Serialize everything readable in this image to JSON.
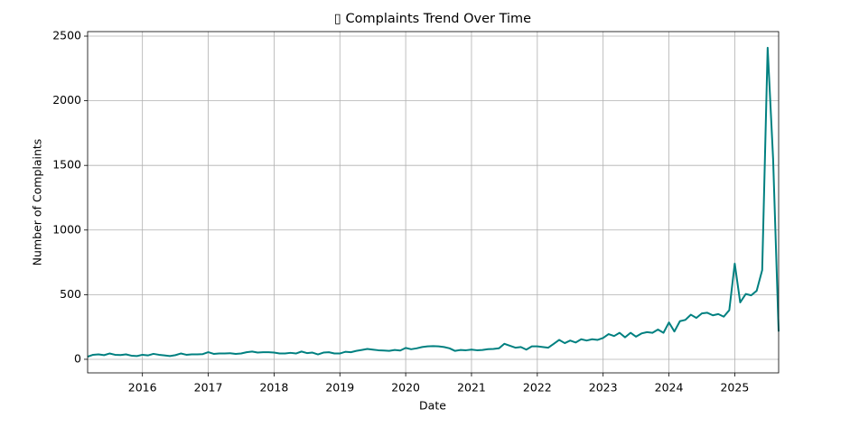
{
  "chart_data": {
    "type": "line",
    "title": "▯ Complaints Trend Over Time",
    "xlabel": "Date",
    "ylabel": "Number of Complaints",
    "color": "#008080",
    "grid": true,
    "x": [
      2015.167,
      2015.25,
      2015.333,
      2015.417,
      2015.5,
      2015.583,
      2015.667,
      2015.75,
      2015.833,
      2015.917,
      2016.0,
      2016.083,
      2016.167,
      2016.25,
      2016.333,
      2016.417,
      2016.5,
      2016.583,
      2016.667,
      2016.75,
      2016.833,
      2016.917,
      2017.0,
      2017.083,
      2017.167,
      2017.25,
      2017.333,
      2017.417,
      2017.5,
      2017.583,
      2017.667,
      2017.75,
      2017.833,
      2017.917,
      2018.0,
      2018.083,
      2018.167,
      2018.25,
      2018.333,
      2018.417,
      2018.5,
      2018.583,
      2018.667,
      2018.75,
      2018.833,
      2018.917,
      2019.0,
      2019.083,
      2019.167,
      2019.25,
      2019.333,
      2019.417,
      2019.5,
      2019.583,
      2019.667,
      2019.75,
      2019.833,
      2019.917,
      2020.0,
      2020.083,
      2020.167,
      2020.25,
      2020.333,
      2020.417,
      2020.5,
      2020.583,
      2020.667,
      2020.75,
      2020.833,
      2020.917,
      2021.0,
      2021.083,
      2021.167,
      2021.25,
      2021.333,
      2021.417,
      2021.5,
      2021.583,
      2021.667,
      2021.75,
      2021.833,
      2021.917,
      2022.0,
      2022.083,
      2022.167,
      2022.25,
      2022.333,
      2022.417,
      2022.5,
      2022.583,
      2022.667,
      2022.75,
      2022.833,
      2022.917,
      2023.0,
      2023.083,
      2023.167,
      2023.25,
      2023.333,
      2023.417,
      2023.5,
      2023.583,
      2023.667,
      2023.75,
      2023.833,
      2023.917,
      2024.0,
      2024.083,
      2024.167,
      2024.25,
      2024.333,
      2024.417,
      2024.5,
      2024.583,
      2024.667,
      2024.75,
      2024.833,
      2024.917,
      2025.0,
      2025.083,
      2025.167,
      2025.25,
      2025.333,
      2025.417,
      2025.5,
      2025.583,
      2025.667
    ],
    "values": [
      20,
      35,
      38,
      32,
      45,
      35,
      33,
      38,
      28,
      25,
      35,
      30,
      42,
      35,
      30,
      25,
      32,
      45,
      35,
      38,
      38,
      40,
      55,
      42,
      45,
      45,
      47,
      42,
      45,
      55,
      60,
      52,
      55,
      55,
      52,
      45,
      45,
      50,
      45,
      60,
      48,
      52,
      38,
      52,
      55,
      45,
      45,
      58,
      55,
      65,
      72,
      80,
      75,
      70,
      68,
      65,
      72,
      68,
      88,
      78,
      85,
      95,
      100,
      102,
      100,
      95,
      85,
      65,
      72,
      70,
      75,
      70,
      72,
      78,
      80,
      85,
      120,
      105,
      90,
      95,
      75,
      100,
      100,
      95,
      90,
      120,
      150,
      125,
      145,
      130,
      155,
      145,
      155,
      150,
      165,
      195,
      180,
      205,
      170,
      205,
      175,
      200,
      210,
      205,
      230,
      205,
      285,
      215,
      295,
      305,
      345,
      320,
      355,
      360,
      340,
      350,
      330,
      380,
      740,
      440,
      505,
      495,
      530,
      690,
      2410,
      1550,
      215
    ],
    "xlim": [
      2015.167,
      2025.667
    ],
    "xticks": [
      2016,
      2017,
      2018,
      2019,
      2020,
      2021,
      2022,
      2023,
      2024,
      2025
    ],
    "ylim": [
      -105,
      2535
    ],
    "yticks": [
      0,
      500,
      1000,
      1500,
      2000,
      2500
    ]
  }
}
